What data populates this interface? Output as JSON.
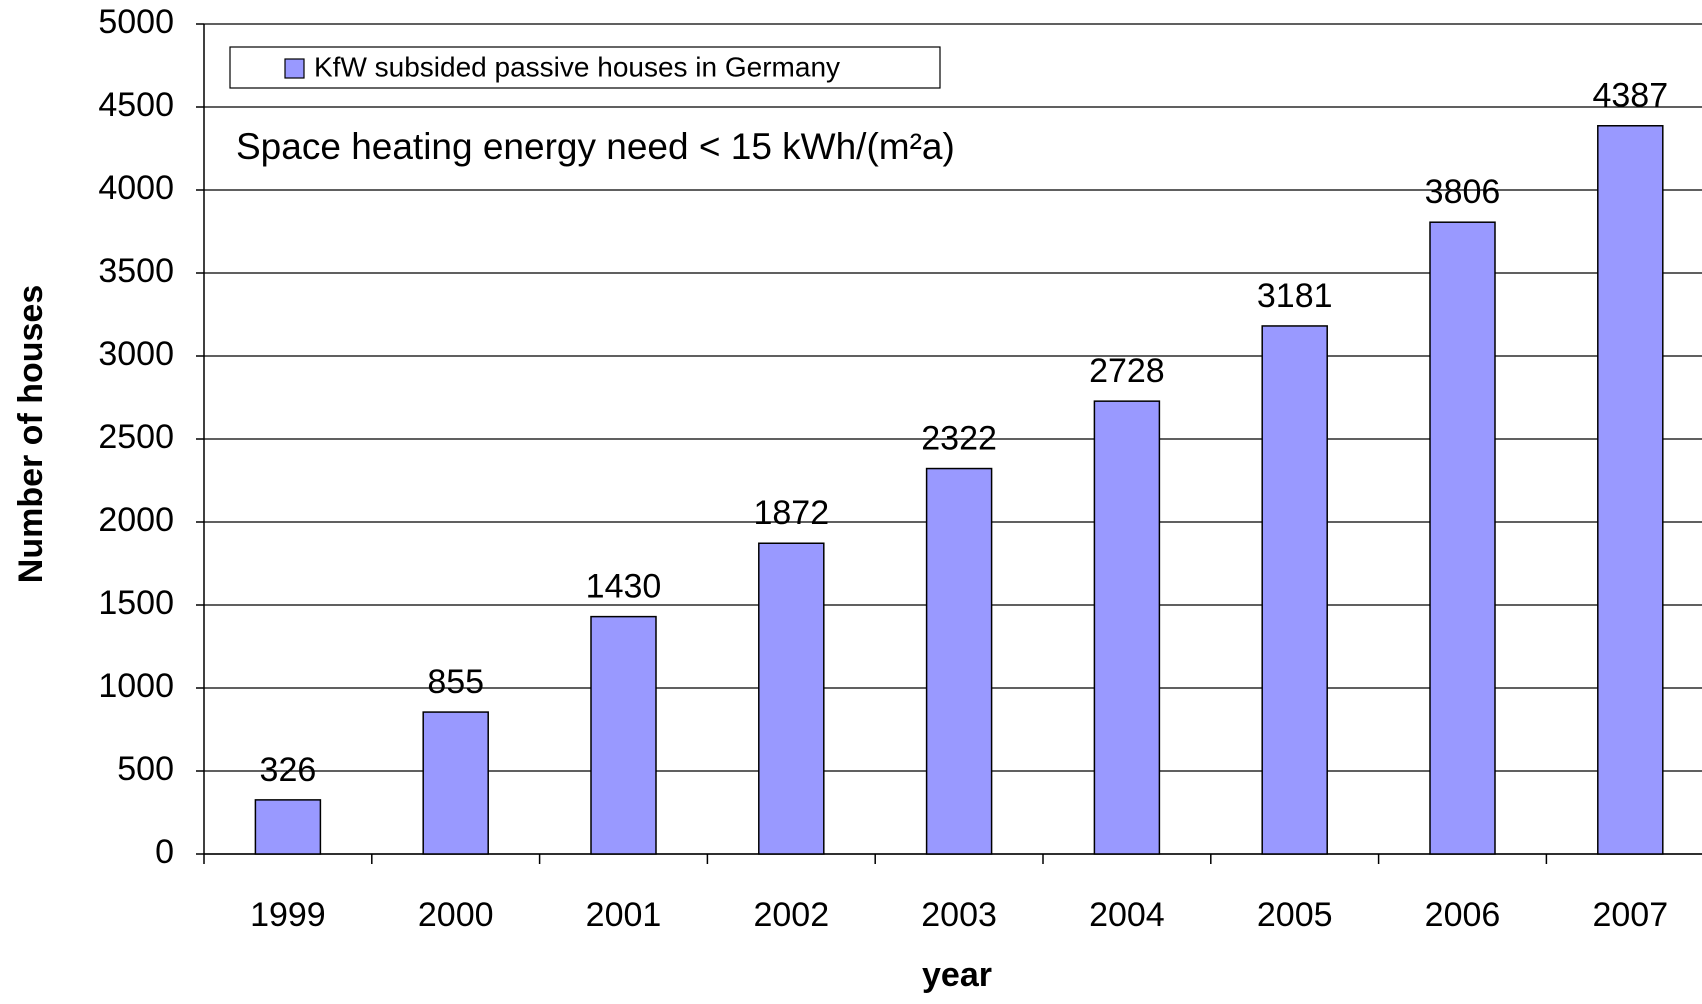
{
  "chart_data": {
    "type": "bar",
    "categories": [
      "1999",
      "2000",
      "2001",
      "2002",
      "2003",
      "2004",
      "2005",
      "2006",
      "2007"
    ],
    "series": [
      {
        "name": "KfW subsided passive houses in Germany",
        "color": "#9999ff",
        "values": [
          326,
          855,
          1430,
          1872,
          2322,
          2728,
          3181,
          3806,
          4387
        ]
      }
    ],
    "annotation": "Space heating energy need < 15 kWh/(m²a)",
    "xlabel": "year",
    "ylabel": "Number of houses",
    "ylim": [
      0,
      5000
    ],
    "yticks": [
      0,
      500,
      1000,
      1500,
      2000,
      2500,
      3000,
      3500,
      4000,
      4500,
      5000
    ],
    "grid": true,
    "legend": "top-left"
  }
}
